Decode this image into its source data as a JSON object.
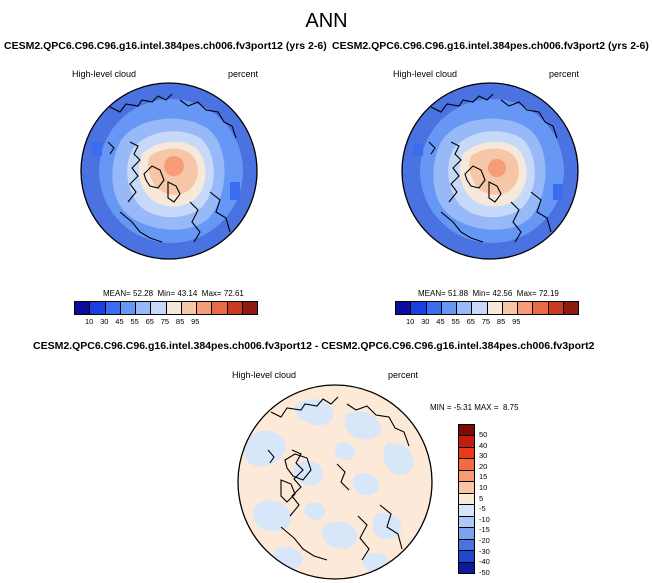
{
  "figure": {
    "title": "ANN"
  },
  "colors": {
    "abs_scale": [
      "#0c0c9e",
      "#1a3ee0",
      "#3a6df0",
      "#6797f5",
      "#98b9f7",
      "#c6d9f9",
      "#f6e9dc",
      "#f7c6a7",
      "#f69c78",
      "#ea6a48",
      "#c93a22",
      "#911a10"
    ],
    "diff_scale": [
      "#7f0a05",
      "#c41c10",
      "#e8391b",
      "#f46a40",
      "#f79b73",
      "#f8c5a6",
      "#fce9d8",
      "#d8e6fa",
      "#aec9f5",
      "#7ba3ee",
      "#4a72e0",
      "#2346cf",
      "#0d1a9b"
    ],
    "coast": "#000000"
  },
  "panels": [
    {
      "id": "left",
      "title": "CESM2.QPC6.C96.C96.g16.intel.384pes.ch006.fv3port12 (yrs 2-6)",
      "variable": "High-level cloud",
      "units": "percent",
      "stats": {
        "mean_label": "MEAN=",
        "mean": "52.28",
        "min_label": "Min=",
        "min": "43.14",
        "max_label": "Max=",
        "max": "72.61"
      },
      "colorbar_ticks": [
        "10",
        "30",
        "45",
        "55",
        "65",
        "75",
        "85",
        "95"
      ]
    },
    {
      "id": "right",
      "title": "CESM2.QPC6.C96.C96.g16.intel.384pes.ch006.fv3port2 (yrs 2-6)",
      "variable": "High-level cloud",
      "units": "percent",
      "stats": {
        "mean_label": "MEAN=",
        "mean": "51.88",
        "min_label": "Min=",
        "min": "42.56",
        "max_label": "Max=",
        "max": "72.19"
      },
      "colorbar_ticks": [
        "10",
        "30",
        "45",
        "55",
        "65",
        "75",
        "85",
        "95"
      ]
    }
  ],
  "diff_panel": {
    "title": "CESM2.QPC6.C96.C96.g16.intel.384pes.ch006.fv3port12 - CESM2.QPC6.C96.C96.g16.intel.384pes.ch006.fv3port2",
    "variable": "High-level cloud",
    "units": "percent",
    "stats": {
      "min_label": "MIN =",
      "min": "-5.31",
      "max_label": "MAX =",
      "max": "8.75"
    },
    "colorbar_ticks": [
      "50",
      "40",
      "30",
      "20",
      "15",
      "10",
      "5",
      "-5",
      "-10",
      "-15",
      "-20",
      "-30",
      "-40",
      "-50"
    ]
  }
}
